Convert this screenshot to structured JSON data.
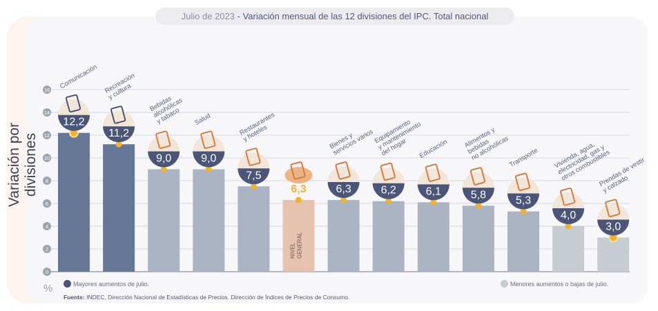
{
  "chart_data": {
    "type": "bar",
    "title_date": "Julio de 2023",
    "title": "Variación mensual de las 12 divisiones del IPC. Total nacional",
    "ylabel": "Variación por divisiones",
    "yunit": "%",
    "ylim": [
      0,
      16
    ],
    "yticks": [
      0,
      2,
      4,
      6,
      8,
      10,
      12,
      14,
      16
    ],
    "grid": true,
    "categories": [
      "Comunicación",
      "Recreación y cultura",
      "Bebidas alcohólicas y tabaco",
      "Salud",
      "Restaurantes y hoteles",
      "NIVEL GENERAL",
      "Bienes y servicios varios",
      "Equipamiento y mantenimiento del hogar",
      "Educación",
      "Alimentos y bebidas no alcohólicas",
      "Transporte",
      "Vivienda, agua, electricidad, gas y otros combustibles",
      "Prendas de vestir y calzado"
    ],
    "label_lines": [
      [
        "Comunicación"
      ],
      [
        "Recreación",
        "y cultura"
      ],
      [
        "Bebidas",
        "alcohólicas",
        "y tabaco"
      ],
      [
        "Salud"
      ],
      [
        "Restaurantes",
        "y hoteles"
      ],
      [
        "NIVEL",
        "GENERAL"
      ],
      [
        "Bienes y",
        "servicios varios"
      ],
      [
        "Equipamiento",
        "y mantenimiento",
        "del hogar"
      ],
      [
        "Educación"
      ],
      [
        "Alimentos y",
        "bebidas",
        "no alcohólicas"
      ],
      [
        "Transporte"
      ],
      [
        "Vivienda, agua,",
        "electricidad, gas y",
        "otros combustibles"
      ],
      [
        "Prendas de vestir",
        "y calzado"
      ]
    ],
    "values": [
      12.2,
      11.2,
      9.0,
      9.0,
      7.5,
      6.3,
      6.3,
      6.2,
      6.1,
      5.8,
      5.3,
      4.0,
      3.0
    ],
    "value_labels": [
      "12,2",
      "11,2",
      "9,0",
      "9,0",
      "7,5",
      "6,3",
      "6,3",
      "6,2",
      "6,1",
      "5,8",
      "5,3",
      "4,0",
      "3,0"
    ],
    "groups": [
      "high",
      "high",
      "mid",
      "mid",
      "mid",
      "general",
      "mid",
      "mid",
      "mid",
      "mid",
      "mid",
      "low",
      "low"
    ],
    "colors": {
      "high": "#657898",
      "mid": "#aab4c2",
      "general": "#e5c3ae",
      "low": "#c7ccd2",
      "badge": "#4a5577",
      "dot": "#f0b32e",
      "general_text": "#eeb23a"
    },
    "legend": {
      "high": "Mayores aumentos de julio.",
      "low": "Menores aumentos o bajas de julio.",
      "placement": "bottom"
    }
  },
  "source": {
    "label": "Fuente:",
    "text": "INDEC, Dirección Nacional de Estadísticas de Precios. Dirección de Índices de Precios de Consumo."
  }
}
